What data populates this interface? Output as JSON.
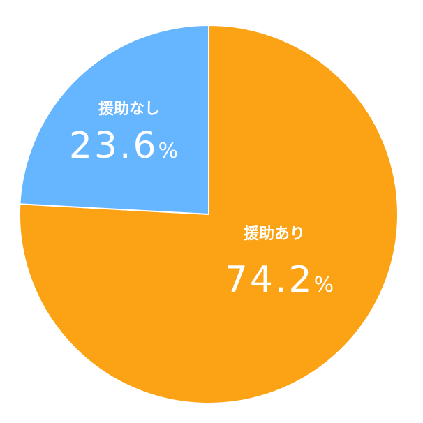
{
  "chart_data": {
    "type": "pie",
    "slices": [
      {
        "name": "援助あり",
        "value": 74.2,
        "value_text": "74.2",
        "unit": "%",
        "color": "#FBA314"
      },
      {
        "name": "援助なし",
        "value": 23.6,
        "value_text": "23.6",
        "unit": "%",
        "color": "#66B5FF"
      }
    ],
    "start_angle_deg": 0,
    "direction": "clockwise",
    "edge_color": "#ffffff"
  }
}
